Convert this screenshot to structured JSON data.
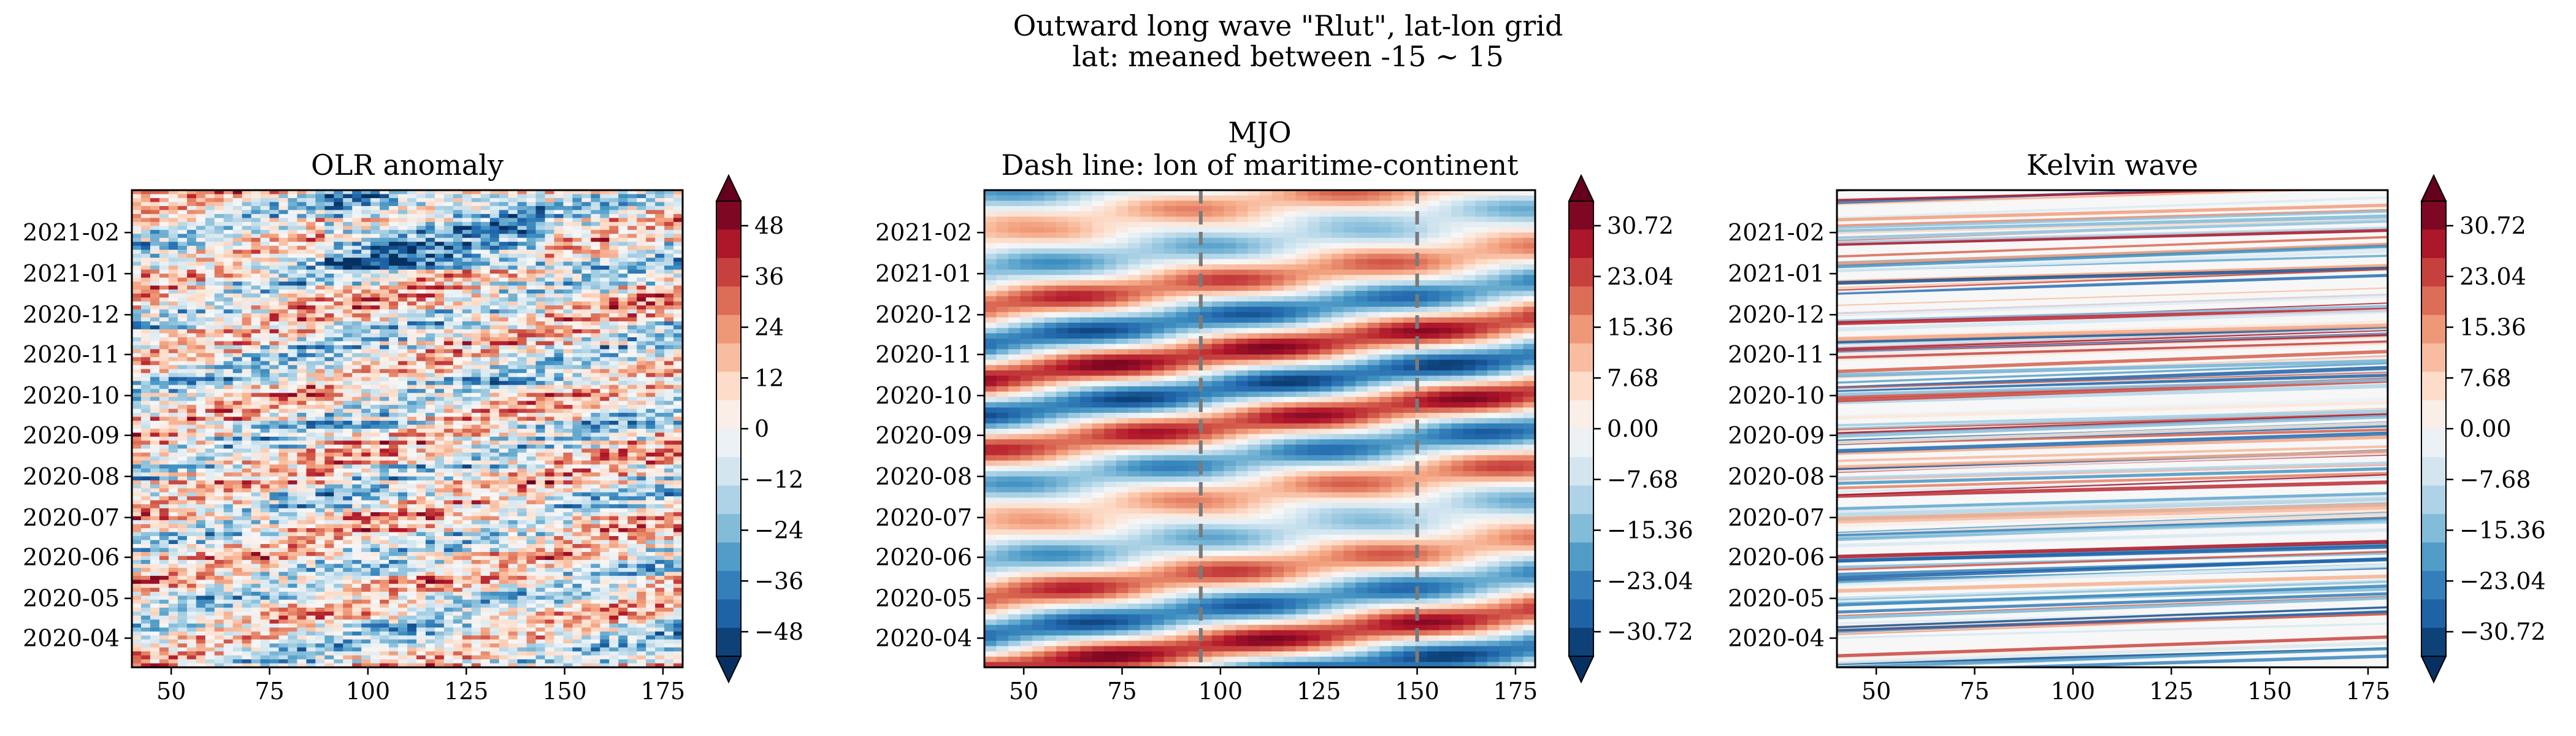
{
  "figure": {
    "title_line1": "Outward long wave \"Rlut\", lat-lon grid",
    "title_line2": "lat: meaned between -15 ~ 15"
  },
  "chart_data": [
    {
      "type": "heatmap",
      "title": "OLR anomaly",
      "x_ticks": [
        50,
        75,
        100,
        125,
        150,
        175
      ],
      "xlim": [
        40,
        180
      ],
      "y_ticks": [
        "2020-04",
        "2020-05",
        "2020-06",
        "2020-07",
        "2020-08",
        "2020-09",
        "2020-10",
        "2020-11",
        "2020-12",
        "2021-01",
        "2021-02"
      ],
      "ylim": [
        "2020-03-10",
        "2021-03-05"
      ],
      "colormap": "RdBu_r",
      "colorbar_ticks": [
        "48",
        "36",
        "24",
        "12",
        "0",
        "−12",
        "−24",
        "−36",
        "−48"
      ],
      "colorbar_range": [
        -48,
        48
      ]
    },
    {
      "type": "heatmap",
      "title_line1": "MJO",
      "title_line2": "Dash line: lon of maritime-continent",
      "x_ticks": [
        50,
        75,
        100,
        125,
        150,
        175
      ],
      "xlim": [
        40,
        180
      ],
      "y_ticks": [
        "2020-04",
        "2020-05",
        "2020-06",
        "2020-07",
        "2020-08",
        "2020-09",
        "2020-10",
        "2020-11",
        "2020-12",
        "2021-01",
        "2021-02"
      ],
      "ylim": [
        "2020-03-10",
        "2021-03-05"
      ],
      "dashed_lines_lon": [
        95,
        150
      ],
      "colormap": "RdBu_r",
      "colorbar_ticks": [
        "30.72",
        "23.04",
        "15.36",
        "7.68",
        "0.00",
        "−7.68",
        "−15.36",
        "−23.04",
        "−30.72"
      ],
      "colorbar_range": [
        -30.72,
        30.72
      ]
    },
    {
      "type": "heatmap",
      "title": "Kelvin wave",
      "x_ticks": [
        50,
        75,
        100,
        125,
        150,
        175
      ],
      "xlim": [
        40,
        180
      ],
      "y_ticks": [
        "2020-04",
        "2020-05",
        "2020-06",
        "2020-07",
        "2020-08",
        "2020-09",
        "2020-10",
        "2020-11",
        "2020-12",
        "2021-01",
        "2021-02"
      ],
      "ylim": [
        "2020-03-10",
        "2021-03-05"
      ],
      "colormap": "RdBu_r",
      "colorbar_ticks": [
        "30.72",
        "23.04",
        "15.36",
        "7.68",
        "0.00",
        "−7.68",
        "−15.36",
        "−23.04",
        "−30.72"
      ],
      "colorbar_range": [
        -30.72,
        30.72
      ]
    }
  ]
}
